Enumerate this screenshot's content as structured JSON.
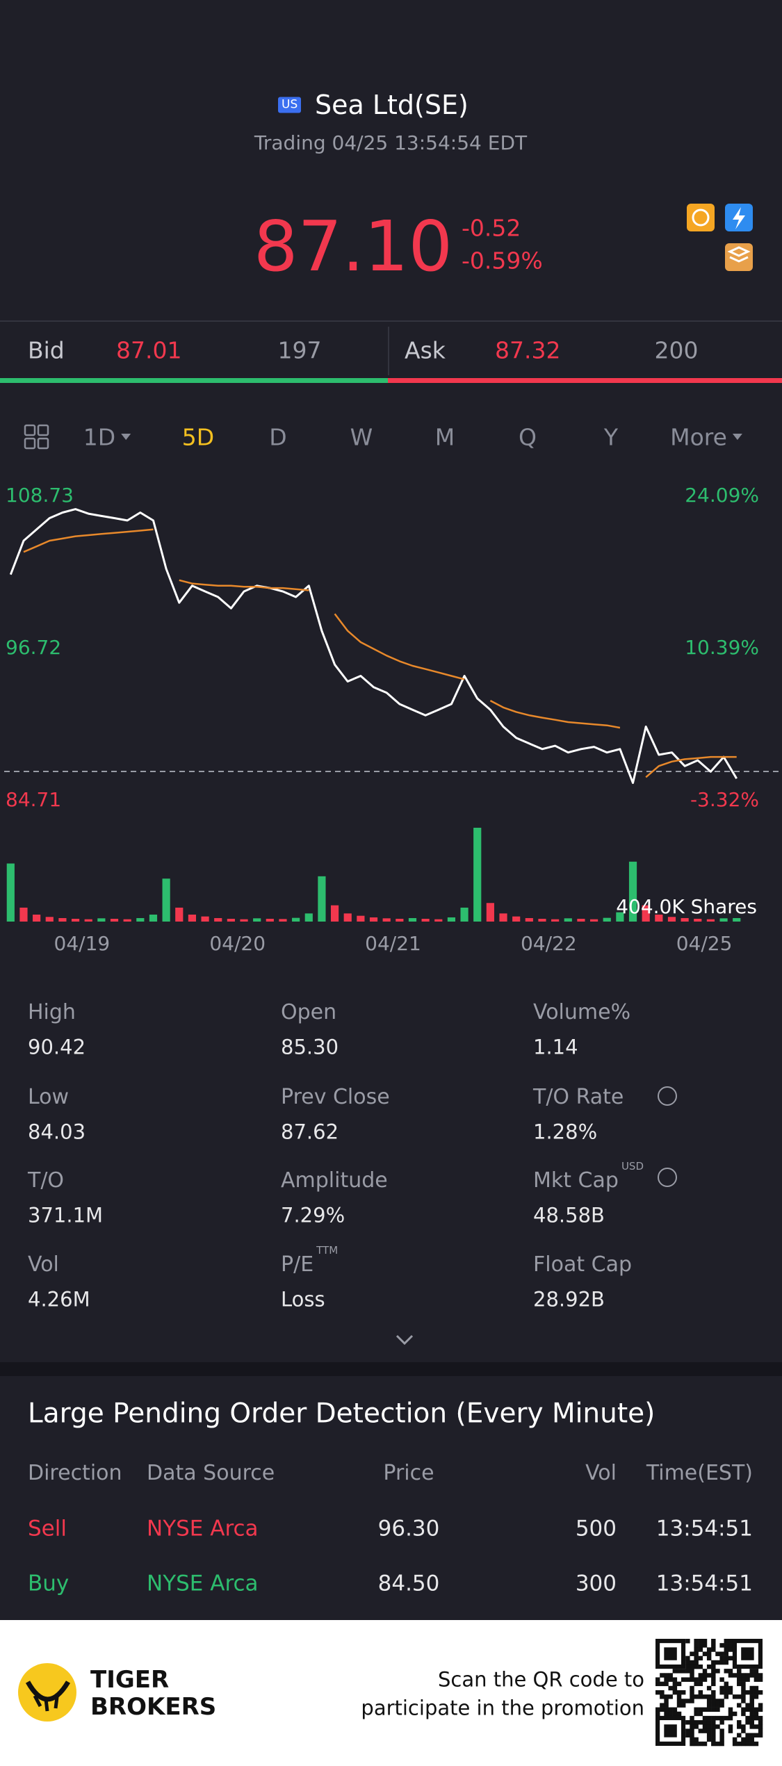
{
  "header": {
    "badge": "US",
    "name": "Sea Ltd(SE)",
    "status": "Trading 04/25 13:54:54 EDT"
  },
  "quote": {
    "price": "87.10",
    "change": "-0.52",
    "change_pct": "-0.59%"
  },
  "bid_ask": {
    "bid_label": "Bid",
    "bid_price": "87.01",
    "bid_size": "197",
    "ask_label": "Ask",
    "ask_price": "87.32",
    "ask_size": "200"
  },
  "tabs": {
    "items": [
      "1D",
      "5D",
      "D",
      "W",
      "M",
      "Q",
      "Y",
      "More"
    ],
    "active": 1
  },
  "chart_data": {
    "type": "line",
    "days": [
      "04/19",
      "04/20",
      "04/21",
      "04/22",
      "04/25"
    ],
    "series": [
      {
        "color": "#ffffff",
        "values": [
          102.1,
          104.59,
          105.42,
          106.25,
          106.66,
          106.91,
          106.58,
          106.41,
          106.25,
          106.08,
          106.66,
          106.08,
          102.52,
          100.03,
          101.28,
          100.86,
          100.45,
          99.62,
          100.86,
          101.28,
          101.11,
          100.86,
          100.45,
          101.28,
          97.96,
          95.48,
          94.24,
          94.65,
          93.82,
          93.41,
          92.58,
          92.16,
          91.75,
          92.16,
          92.58,
          94.65,
          92.99,
          92.16,
          90.92,
          90.09,
          89.68,
          89.27,
          89.51,
          89.02,
          89.27,
          89.43,
          89.02,
          89.27,
          86.78,
          90.92,
          88.85,
          89.02,
          88.02,
          88.44,
          87.61,
          88.69,
          87.1,
          null,
          null,
          null
        ]
      },
      {
        "color": "#e8892b",
        "values": [
          null,
          103.76,
          104.17,
          104.59,
          104.75,
          104.92,
          105.0,
          105.09,
          105.17,
          105.25,
          105.33,
          105.42,
          null,
          101.69,
          101.44,
          101.36,
          101.28,
          101.28,
          101.2,
          101.2,
          101.11,
          101.11,
          101.03,
          100.94,
          null,
          99.21,
          97.96,
          97.13,
          96.64,
          96.14,
          95.73,
          95.39,
          95.15,
          94.9,
          94.65,
          94.4,
          null,
          92.83,
          92.33,
          92.0,
          91.75,
          91.58,
          91.42,
          91.25,
          91.17,
          91.09,
          91.01,
          90.84,
          null,
          87.2,
          88.02,
          88.35,
          88.52,
          88.6,
          88.69,
          88.69,
          88.69,
          null,
          null,
          null
        ]
      }
    ],
    "ylim": [
      84.71,
      108.73
    ],
    "yticks": [
      84.71,
      96.72,
      108.73
    ],
    "y2lim": [
      -3.32,
      24.09
    ],
    "y2ticks": [
      {
        "value": -3.32,
        "label": "-3.32%"
      },
      {
        "value": 10.39,
        "label": "10.39%"
      },
      {
        "value": 24.09,
        "label": "24.09%"
      }
    ],
    "ref_line": 87.62,
    "up_color": "#2dbd6e",
    "down_color": "#f2384e",
    "volume": {
      "ylim": [
        0,
        404000
      ],
      "top_tick": {
        "value": 404000,
        "label": "404.0K Shares"
      },
      "values": [
        250000,
        60000,
        30000,
        20000,
        15000,
        12000,
        10000,
        14000,
        12000,
        10000,
        15000,
        30000,
        185000,
        60000,
        30000,
        22000,
        15000,
        12000,
        10000,
        14000,
        12000,
        11000,
        16000,
        35000,
        195000,
        70000,
        35000,
        25000,
        18000,
        14000,
        12000,
        15000,
        12000,
        10000,
        18000,
        60000,
        404000,
        80000,
        35000,
        22000,
        15000,
        12000,
        10000,
        14000,
        12000,
        10000,
        16000,
        40000,
        258000,
        70000,
        30000,
        20000,
        15000,
        12000,
        10000,
        14000,
        15000,
        null,
        null,
        null
      ]
    }
  },
  "stats": [
    {
      "label": "High",
      "value": "90.42"
    },
    {
      "label": "Open",
      "value": "85.30"
    },
    {
      "label": "Volume%",
      "value": "1.14"
    },
    {
      "label": "Low",
      "value": "84.03"
    },
    {
      "label": "Prev Close",
      "value": "87.62"
    },
    {
      "label": "T/O Rate",
      "value": "1.28%"
    },
    {
      "label": "T/O",
      "value": "371.1M"
    },
    {
      "label": "Amplitude",
      "value": "7.29%"
    },
    {
      "label": "Mkt Cap",
      "sup": "USD",
      "value": "48.58B"
    },
    {
      "label": "Vol",
      "value": "4.26M"
    },
    {
      "label": "P/E",
      "sup": "TTM",
      "value": "Loss"
    },
    {
      "label": "Float Cap",
      "value": "28.92B"
    }
  ],
  "orders": {
    "title": "Large Pending Order Detection (Every Minute)",
    "headers": [
      "Direction",
      "Data Source",
      "Price",
      "Vol",
      "Time(EST)"
    ],
    "rows": [
      {
        "color": "#f2384e",
        "cells": [
          "Sell",
          "NYSE Arca",
          "96.30",
          "500",
          "13:54:51"
        ]
      },
      {
        "color": "#2dbd6e",
        "cells": [
          "Buy",
          "NYSE Arca",
          "84.50",
          "300",
          "13:54:51"
        ]
      }
    ]
  },
  "footer": {
    "brand": [
      "TIGER",
      "BROKERS"
    ],
    "promo": [
      "Scan the QR code to",
      "participate in the promotion"
    ]
  }
}
